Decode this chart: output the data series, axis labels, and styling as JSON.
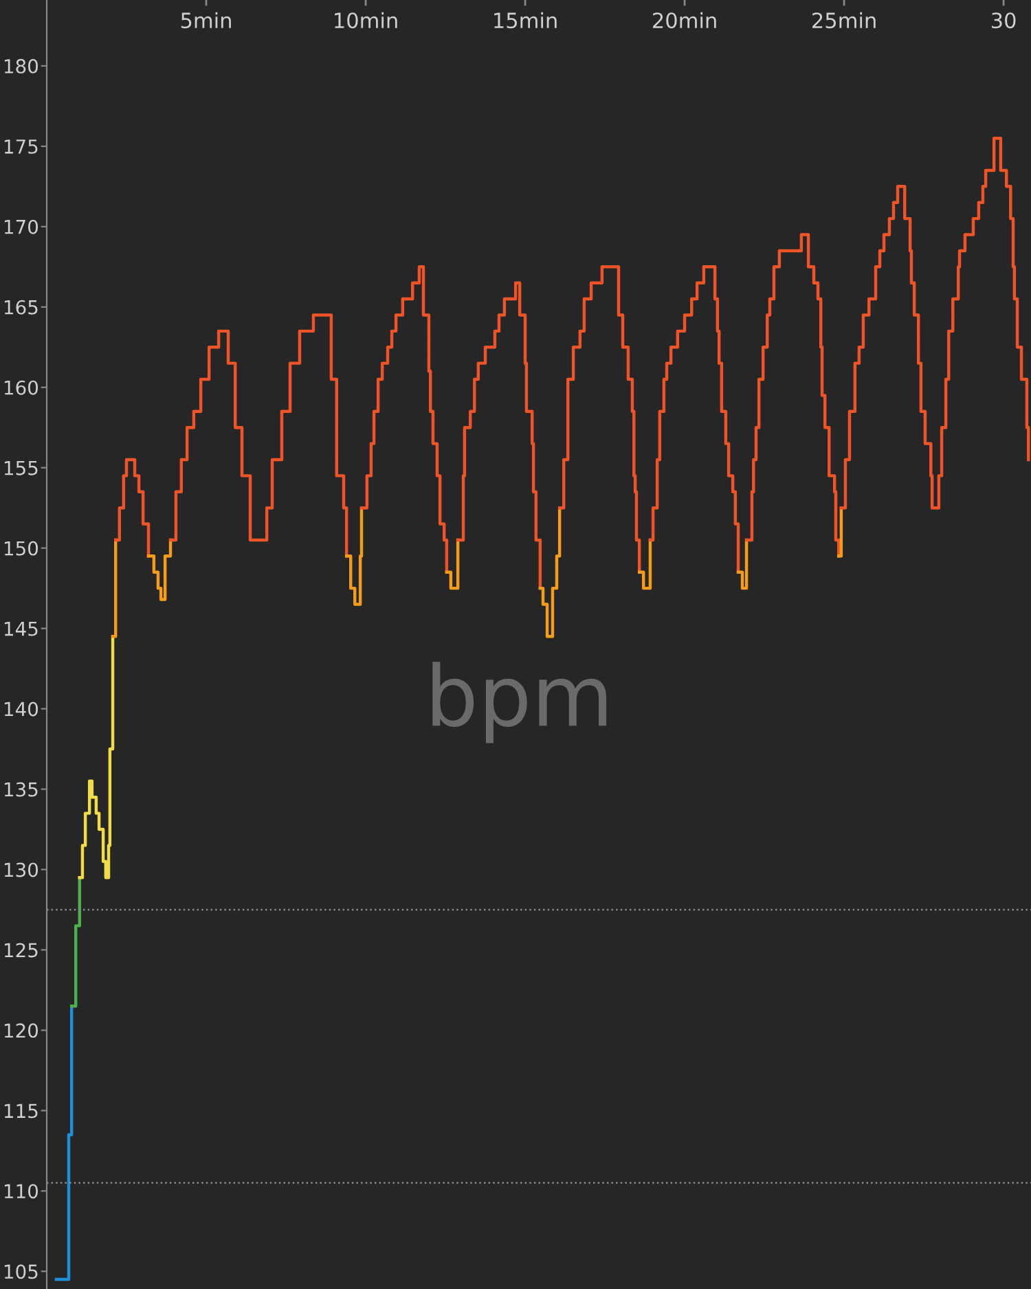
{
  "chart_data": {
    "type": "step",
    "ylabel": "bpm",
    "xlim": [
      0,
      30.86
    ],
    "ylim": [
      103.9,
      184.1
    ],
    "xticks": [
      {
        "value": 5,
        "label": "5min"
      },
      {
        "value": 10,
        "label": "10min"
      },
      {
        "value": 15,
        "label": "15min"
      },
      {
        "value": 20,
        "label": "20min"
      },
      {
        "value": 25,
        "label": "25min"
      },
      30
    ],
    "yticks": [
      105,
      110,
      115,
      120,
      125,
      130,
      135,
      140,
      145,
      150,
      155,
      160,
      165,
      170,
      175,
      180
    ],
    "grid": false,
    "legend": false,
    "ref_lines": [
      {
        "axis": "y",
        "value": 127.5,
        "label": null,
        "color": "#8a8a8a",
        "line_style": "dotted"
      },
      {
        "axis": "y",
        "value": 110.5,
        "label": null,
        "color": "#8a8a8a",
        "line_style": "dotted"
      }
    ],
    "series": [
      {
        "color": "#1e90d8",
        "x": [
          0.3,
          0.69,
          0.78
        ],
        "values": [
          104.5,
          113.5,
          121.5
        ]
      },
      {
        "color": "#4caf50",
        "x": [
          0.78,
          0.91,
          1.03
        ],
        "values": [
          121.5,
          126.5,
          129.5
        ]
      },
      {
        "color": "#f0dc48",
        "x": [
          1.03,
          1.12,
          1.21,
          1.34,
          1.42,
          1.55,
          1.64,
          1.77,
          1.85,
          1.94,
          1.98,
          2.07
        ],
        "values": [
          129.5,
          131.5,
          133.5,
          135.5,
          134.5,
          133.5,
          132.5,
          130.5,
          129.5,
          131.5,
          137.5,
          144.5
        ]
      },
      {
        "color": "#f59c1c",
        "x": [
          2.07,
          2.16
        ],
        "values": [
          144.5,
          150.5
        ]
      },
      {
        "color": "#ee5428",
        "x": [
          2.16,
          2.28,
          2.41,
          2.5,
          2.76,
          2.89,
          3.02,
          3.19
        ],
        "values": [
          150.5,
          152.5,
          154.5,
          155.5,
          154.5,
          153.5,
          151.5,
          149.5
        ]
      },
      {
        "color": "#f59c1c",
        "x": [
          3.19,
          3.36,
          3.49,
          3.58,
          3.71,
          3.88
        ],
        "values": [
          149.5,
          148.5,
          147.5,
          146.8,
          149.5,
          150.5
        ]
      },
      {
        "color": "#ee5428",
        "x": [
          3.88,
          4.05,
          4.22,
          4.4,
          4.61,
          4.83,
          5.09,
          5.39,
          5.69,
          5.91,
          6.12,
          6.38,
          6.72,
          6.9,
          7.07,
          7.37,
          7.63,
          7.93,
          8.36,
          8.92,
          9.09,
          9.31,
          9.4
        ],
        "values": [
          150.5,
          153.5,
          155.5,
          157.5,
          158.5,
          160.5,
          162.5,
          163.5,
          161.5,
          157.5,
          154.5,
          150.5,
          150.5,
          152.5,
          155.5,
          158.5,
          161.5,
          163.5,
          164.5,
          160.5,
          154.5,
          152.5,
          149.5
        ]
      },
      {
        "color": "#f59c1c",
        "x": [
          9.4,
          9.53,
          9.66,
          9.83,
          9.87
        ],
        "values": [
          149.5,
          147.5,
          146.5,
          149.5,
          152.5
        ]
      },
      {
        "color": "#ee5428",
        "x": [
          9.87,
          10.04,
          10.17,
          10.26,
          10.39,
          10.52,
          10.69,
          10.82,
          10.95,
          11.16,
          11.47,
          11.68,
          11.81,
          11.98,
          12.03,
          12.11,
          12.24,
          12.33,
          12.46,
          12.54
        ],
        "values": [
          152.5,
          154.5,
          156.5,
          158.5,
          160.5,
          161.5,
          162.5,
          163.5,
          164.5,
          165.5,
          166.5,
          167.5,
          164.5,
          161,
          158.5,
          156.5,
          154.5,
          151.5,
          150.5,
          148.5
        ]
      },
      {
        "color": "#f59c1c",
        "x": [
          12.54,
          12.67,
          12.89
        ],
        "values": [
          148.5,
          147.5,
          150.5
        ]
      },
      {
        "color": "#ee5428",
        "x": [
          12.89,
          13.06,
          13.1,
          13.28,
          13.41,
          13.53,
          13.75,
          14.05,
          14.18,
          14.35,
          14.7,
          14.83,
          15.0,
          15.04,
          15.22,
          15.26,
          15.34,
          15.47
        ],
        "values": [
          150.5,
          154.5,
          157.5,
          158.5,
          160.5,
          161.5,
          162.5,
          163.5,
          164.5,
          165.5,
          166.5,
          164.5,
          161.5,
          158.5,
          156.5,
          153.5,
          150.5,
          147.5
        ]
      },
      {
        "color": "#f59c1c",
        "x": [
          15.47,
          15.56,
          15.69,
          15.86,
          15.99,
          16.08
        ],
        "values": [
          147.5,
          146.5,
          144.5,
          147.5,
          149.5,
          152.5
        ]
      },
      {
        "color": "#ee5428",
        "x": [
          16.08,
          16.21,
          16.34,
          16.51,
          16.72,
          16.85,
          17.07,
          17.41,
          17.93,
          18.06,
          18.23,
          18.36,
          18.41,
          18.45,
          18.49,
          18.58
        ],
        "values": [
          152.5,
          155.5,
          160.5,
          162.5,
          163.5,
          165.5,
          166.5,
          167.5,
          164.5,
          162.5,
          160.5,
          158.5,
          154.5,
          153.5,
          150.5,
          148.5
        ]
      },
      {
        "color": "#f59c1c",
        "x": [
          18.58,
          18.71,
          18.92
        ],
        "values": [
          148.5,
          147.5,
          150.5
        ]
      },
      {
        "color": "#ee5428",
        "x": [
          18.92,
          19.01,
          19.14,
          19.22,
          19.35,
          19.44,
          19.57,
          19.78,
          20.0,
          20.22,
          20.39,
          20.6,
          20.95,
          21.03,
          21.08,
          21.16,
          21.29,
          21.38,
          21.51,
          21.59,
          21.68
        ],
        "values": [
          150.5,
          152.5,
          155.5,
          158.5,
          160.5,
          161.5,
          162.5,
          163.5,
          164.5,
          165.5,
          166.5,
          167.5,
          165.5,
          163.5,
          161.5,
          158.5,
          156.5,
          154.5,
          153.5,
          151.5,
          148.5
        ]
      },
      {
        "color": "#f59c1c",
        "x": [
          21.68,
          21.81,
          21.94
        ],
        "values": [
          148.5,
          147.5,
          150.5
        ]
      },
      {
        "color": "#ee5428",
        "x": [
          21.94,
          22.11,
          22.16,
          22.24,
          22.33,
          22.46,
          22.59,
          22.67,
          22.8,
          22.97,
          23.66,
          23.88,
          24.05,
          24.18,
          24.27,
          24.31,
          24.4,
          24.53,
          24.7,
          24.74,
          24.83
        ],
        "values": [
          150.5,
          153.5,
          155.5,
          157.5,
          160.5,
          162.5,
          164.5,
          165.5,
          167.5,
          168.5,
          169.5,
          167.5,
          166.5,
          165.5,
          162.5,
          159.5,
          157.5,
          154.5,
          153.5,
          150.5,
          149.5
        ]
      },
      {
        "color": "#f59c1c",
        "x": [
          24.83,
          24.91
        ],
        "values": [
          149.5,
          152.5
        ]
      },
      {
        "color": "#ee5428",
        "x": [
          24.91,
          25.04,
          25.17,
          25.34,
          25.47,
          25.6,
          25.78,
          25.99,
          26.12,
          26.25,
          26.42,
          26.55,
          26.68,
          26.9,
          27.07,
          27.11,
          27.2,
          27.33,
          27.41,
          27.54,
          27.72,
          27.76,
          27.97,
          28.06,
          28.19,
          28.28,
          28.41,
          28.58,
          28.62,
          28.79,
          29.05,
          29.22,
          29.35,
          29.44,
          29.7,
          29.91,
          30.09,
          30.22,
          30.3,
          30.34,
          30.43,
          30.56,
          30.73,
          30.78
        ],
        "values": [
          152.5,
          155.5,
          158.5,
          161.5,
          162.5,
          164.5,
          165.5,
          167.5,
          168.5,
          169.5,
          170.5,
          171.5,
          172.5,
          170.5,
          168.5,
          166.5,
          164.5,
          161.5,
          158.5,
          156.5,
          154.5,
          152.5,
          154.5,
          157.5,
          160.5,
          163.5,
          165.5,
          167.5,
          168.5,
          169.5,
          170.5,
          171.5,
          172.5,
          173.5,
          175.5,
          173.5,
          172.5,
          170.5,
          167.5,
          165.5,
          162.5,
          160.5,
          157.5,
          155.5
        ]
      }
    ]
  }
}
